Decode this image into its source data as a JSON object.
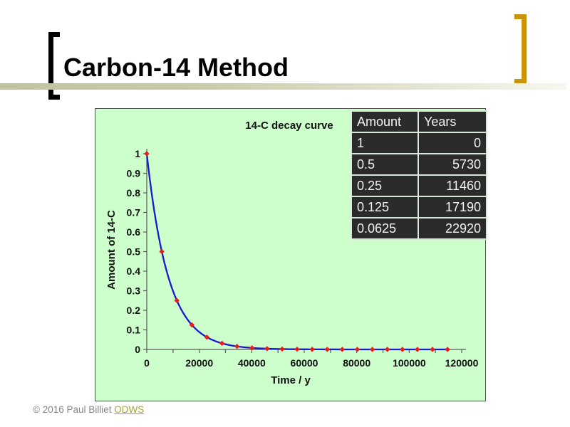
{
  "slide": {
    "title": "Carbon-14 Method",
    "footer": {
      "copyright": "© 2016 Paul Billiet",
      "link_label": "ODWS"
    }
  },
  "table": {
    "headers": [
      "Amount",
      "Years"
    ],
    "rows": [
      [
        "1",
        "0"
      ],
      [
        "0.5",
        "5730"
      ],
      [
        "0.25",
        "11460"
      ],
      [
        "0.125",
        "17190"
      ],
      [
        "0.0625",
        "22920"
      ]
    ]
  },
  "chart_data": {
    "type": "line",
    "title": "14-C decay curve",
    "xlabel": "Time / y",
    "ylabel": "Amount of 14-C",
    "xlim": [
      0,
      120000
    ],
    "ylim": [
      0,
      1
    ],
    "x_major_ticks": [
      0,
      20000,
      40000,
      60000,
      80000,
      100000,
      120000
    ],
    "x_minor_tick_interval": 10000,
    "y_tick_interval": 0.1,
    "half_life_years": 5730,
    "grid": false,
    "legend": "none",
    "series": [
      {
        "name": "14-C decay",
        "x": [
          0,
          5730,
          11460,
          17190,
          22920,
          28650,
          34380,
          40110,
          45840,
          51570,
          57300,
          63030,
          68760,
          74490,
          80220,
          85950,
          91680,
          97410,
          103140,
          108870,
          114600
        ],
        "y": [
          1,
          0.5,
          0.25,
          0.125,
          0.0625,
          0.03125,
          0.015625,
          0.0078125,
          0.00390625,
          0.001953125,
          0.0009765625,
          0.00048828125,
          0.000244140625,
          0.0001220703125,
          6.103515625e-05,
          3.0517578125e-05,
          1.52587890625e-05,
          7.6293945313e-06,
          3.8146972656e-06,
          1.9073486328e-06,
          9.536743164e-07
        ]
      }
    ],
    "colors": {
      "line": "#1a1acd",
      "marker": "#e61e1e",
      "background": "#ccffcc",
      "axis": "#5a5a5a",
      "text": "#111111"
    },
    "marker": "diamond"
  }
}
